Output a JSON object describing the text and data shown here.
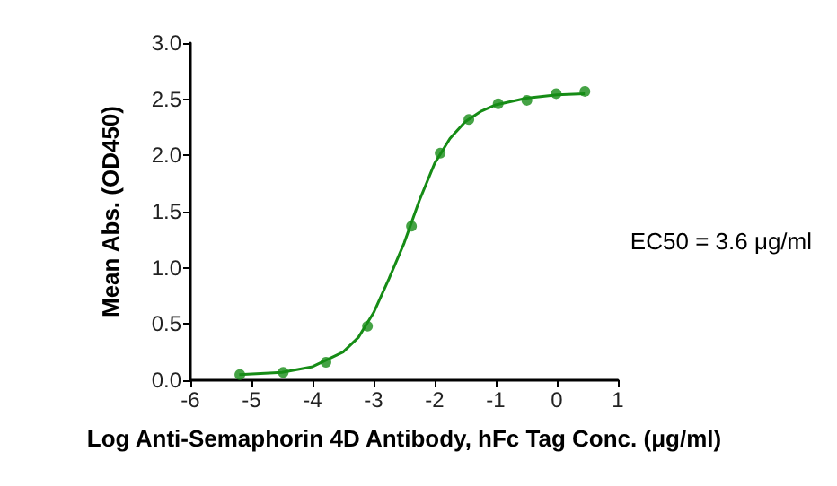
{
  "chart_data": {
    "type": "scatter",
    "xlabel": "Log Anti-Semaphorin 4D Antibody, hFc Tag Conc. (μg/ml)",
    "ylabel": "Mean Abs. (OD450)",
    "annotations": [
      "EC50 = 3.6 μg/ml"
    ],
    "xlim": [
      -6,
      1
    ],
    "xticks": [
      -6,
      -5,
      -4,
      -3,
      -2,
      -1,
      0,
      1
    ],
    "ylim": [
      0,
      3
    ],
    "yticks": [
      {
        "value": 0,
        "label": "0.0"
      },
      {
        "value": 0.5,
        "label": "0.5"
      },
      {
        "value": 1,
        "label": "1.0"
      },
      {
        "value": 1.5,
        "label": "1.5"
      },
      {
        "value": 2,
        "label": "2.0"
      },
      {
        "value": 2.5,
        "label": "2.5"
      },
      {
        "value": 3,
        "label": "3.0"
      }
    ],
    "grid": false,
    "series": [
      {
        "color": "#168c16",
        "marker": "circle",
        "x": [
          -5.19,
          -4.48,
          -3.78,
          -3.1,
          -2.38,
          -1.91,
          -1.44,
          -0.96,
          -0.49,
          -0.01,
          0.46
        ],
        "values": [
          0.05,
          0.07,
          0.16,
          0.48,
          1.37,
          2.02,
          2.32,
          2.46,
          2.49,
          2.55,
          2.57
        ]
      },
      {
        "type": "line",
        "color": "#168c16",
        "marker": "none",
        "line_style": "solid",
        "x": [
          -5.2,
          -4.5,
          -4,
          -3.5,
          -3.25,
          -3,
          -2.75,
          -2.5,
          -2.25,
          -2,
          -1.75,
          -1.5,
          -1.25,
          -1,
          -0.5,
          0,
          0.46
        ],
        "values": [
          0.05,
          0.07,
          0.12,
          0.25,
          0.38,
          0.6,
          0.9,
          1.22,
          1.6,
          1.93,
          2.15,
          2.3,
          2.39,
          2.45,
          2.51,
          2.54,
          2.55
        ]
      }
    ]
  }
}
